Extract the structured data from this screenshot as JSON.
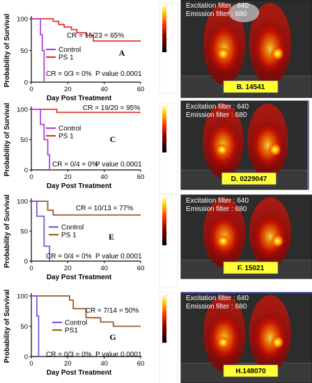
{
  "chart_data": [
    {
      "type": "line",
      "panel": "A",
      "xlabel": "Day Post Treatment",
      "ylabel": "Probability of Survival",
      "xlim": [
        0,
        60
      ],
      "ylim": [
        0,
        100
      ],
      "xticks": [
        "0",
        "20",
        "40",
        "60"
      ],
      "yticks": [
        "0",
        "50",
        "100"
      ],
      "series": [
        {
          "name": "Control",
          "color": "#b040e0",
          "x": [
            0,
            5,
            5,
            6,
            6,
            7,
            7
          ],
          "y": [
            100,
            100,
            75,
            75,
            50,
            50,
            0
          ]
        },
        {
          "name": "PS 1",
          "color": "#e83030",
          "x": [
            0,
            12,
            12,
            15,
            15,
            18,
            18,
            22,
            22,
            25,
            25,
            30,
            30,
            34,
            34,
            60
          ],
          "y": [
            100,
            100,
            96,
            96,
            91,
            91,
            87,
            87,
            83,
            83,
            78,
            78,
            74,
            74,
            65,
            65
          ]
        }
      ],
      "annotations": {
        "cr": "CR = 15/23 = 65%",
        "cr_control": "CR = 0/3 = 0%",
        "pvalue": "P value 0.0001"
      }
    },
    {
      "type": "line",
      "panel": "C",
      "xlabel": "Day Post Treatment",
      "ylabel": "Probability of Survival",
      "xlim": [
        0,
        60
      ],
      "ylim": [
        0,
        100
      ],
      "xticks": [
        "0",
        "20",
        "40",
        "60"
      ],
      "yticks": [
        "0",
        "50",
        "100"
      ],
      "series": [
        {
          "name": "Control",
          "color": "#b040e0",
          "x": [
            0,
            5,
            5,
            7,
            7,
            9,
            9,
            10,
            10
          ],
          "y": [
            100,
            100,
            75,
            75,
            50,
            50,
            25,
            25,
            0
          ]
        },
        {
          "name": "PS 1",
          "color": "#e83030",
          "x": [
            0,
            14,
            14,
            60
          ],
          "y": [
            100,
            100,
            95,
            95
          ]
        }
      ],
      "annotations": {
        "cr": "CR = 19/20 = 95%",
        "cr_control": "CR = 0/4 = 0%",
        "pvalue": "P value 0.0001"
      }
    },
    {
      "type": "line",
      "panel": "E",
      "xlabel": "Day Post Treatment",
      "ylabel": "Probability of Survival",
      "xlim": [
        0,
        60
      ],
      "ylim": [
        0,
        100
      ],
      "xticks": [
        "0",
        "20",
        "40",
        "60"
      ],
      "yticks": [
        "0",
        "50",
        "100"
      ],
      "series": [
        {
          "name": "Control",
          "color": "#7b55e0",
          "x": [
            0,
            3,
            3,
            7,
            7,
            10,
            10
          ],
          "y": [
            100,
            100,
            75,
            75,
            25,
            25,
            0
          ]
        },
        {
          "name": "PS 1",
          "color": "#9a5a2a",
          "x": [
            0,
            9,
            9,
            12,
            12,
            60
          ],
          "y": [
            100,
            100,
            85,
            85,
            77,
            77
          ]
        }
      ],
      "annotations": {
        "cr": "CR = 10/13 = 77%",
        "cr_control": "CR = 0/4 = 0%",
        "pvalue": "P value 0.0001"
      }
    },
    {
      "type": "line",
      "panel": "G",
      "xlabel": "Day Post Treatment",
      "ylabel": "Probability of Survival",
      "xlim": [
        0,
        60
      ],
      "ylim": [
        0,
        100
      ],
      "xticks": [
        "0",
        "20",
        "40",
        "60"
      ],
      "yticks": [
        "0",
        "50",
        "100"
      ],
      "series": [
        {
          "name": "Control",
          "color": "#7b55e0",
          "x": [
            0,
            3,
            3,
            4,
            4
          ],
          "y": [
            100,
            100,
            67,
            67,
            0
          ]
        },
        {
          "name": "PS1",
          "color": "#9a5a2a",
          "x": [
            0,
            21,
            21,
            23,
            23,
            30,
            30,
            38,
            38,
            45,
            45,
            60
          ],
          "y": [
            100,
            100,
            93,
            93,
            79,
            79,
            64,
            64,
            57,
            57,
            50,
            50
          ]
        }
      ],
      "annotations": {
        "cr": "CR = 7/14 = 50%",
        "cr_control": "CR = 0/3 = 0%",
        "pvalue": "P value 0.0001"
      }
    }
  ],
  "images": [
    {
      "excitation": "Excitation filter : 640",
      "emission": "Emission filter : 680",
      "label": "B. 14541",
      "box_color": "#ffff33"
    },
    {
      "excitation": "Excitation filter : 640",
      "emission": "Emission filter : 680",
      "label": "D. 0229047",
      "box_color": "#ffff33"
    },
    {
      "excitation": "Excitation filter : 640",
      "emission": "Emission filter : 680",
      "label": "F. 15021",
      "box_color": "#ffff33"
    },
    {
      "excitation": "Excitation filter : 640",
      "emission": "Emission filter : 680",
      "label": "H.148070",
      "box_color": "#ffff33"
    }
  ]
}
